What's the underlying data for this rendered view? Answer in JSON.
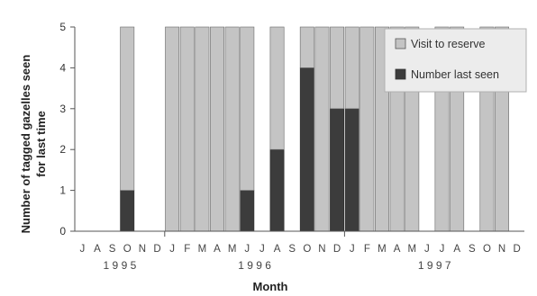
{
  "chart_data": {
    "type": "bar",
    "stacked": true,
    "xlabel": "Month",
    "ylabel_lines": [
      "Number of tagged gazelles seen",
      "for last time"
    ],
    "ylim": [
      0,
      5
    ],
    "yticks": [
      0,
      1,
      2,
      3,
      4,
      5
    ],
    "categories": [
      "J",
      "A",
      "S",
      "O",
      "N",
      "D",
      "J",
      "F",
      "M",
      "A",
      "M",
      "J",
      "J",
      "A",
      "S",
      "O",
      "N",
      "D",
      "J",
      "F",
      "M",
      "A",
      "M",
      "J",
      "J",
      "A",
      "S",
      "O",
      "N",
      "D"
    ],
    "years": [
      {
        "label": "1995",
        "spaced_label": "1 9 9 5",
        "start": 0,
        "end": 5
      },
      {
        "label": "1996",
        "spaced_label": "1 9 9 6",
        "start": 6,
        "end": 17
      },
      {
        "label": "1997",
        "spaced_label": "1 9 9 7",
        "start": 18,
        "end": 29
      }
    ],
    "series": [
      {
        "name": "Number last seen",
        "color": "#3c3c3c",
        "values": [
          0,
          0,
          0,
          1,
          0,
          0,
          0,
          0,
          0,
          0,
          0,
          1,
          0,
          2,
          0,
          4,
          0,
          3,
          3,
          0,
          0,
          0,
          0,
          0,
          0,
          0,
          0,
          0,
          0,
          0
        ]
      },
      {
        "name": "Visit to reserve",
        "color": "#c4c4c4",
        "values": [
          0,
          0,
          0,
          4,
          0,
          0,
          5,
          5,
          5,
          5,
          5,
          4,
          0,
          3,
          0,
          1,
          5,
          2,
          2,
          5,
          5,
          5,
          5,
          0,
          5,
          5,
          0,
          5,
          5,
          0
        ]
      }
    ],
    "legend_position": "top-right",
    "grid": false
  }
}
